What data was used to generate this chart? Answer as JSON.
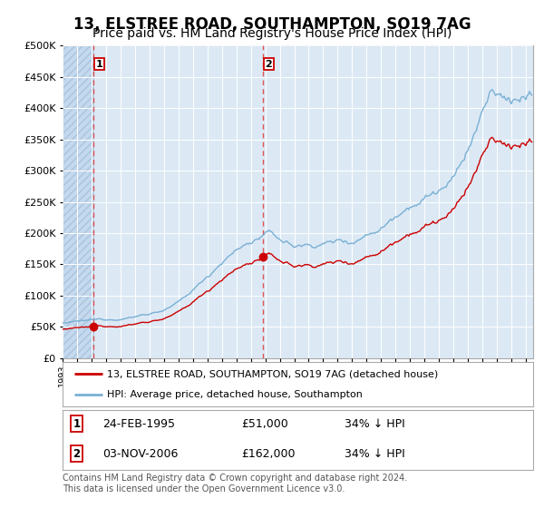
{
  "title": "13, ELSTREE ROAD, SOUTHAMPTON, SO19 7AG",
  "subtitle": "Price paid vs. HM Land Registry's House Price Index (HPI)",
  "title_fontsize": 12,
  "subtitle_fontsize": 10,
  "bg_color": "#dce9f5",
  "grid_color": "#ffffff",
  "red_line_color": "#cc0000",
  "blue_line_color": "#7ab0d4",
  "sale1_date": 1995.15,
  "sale1_price": 51000,
  "sale2_date": 2006.84,
  "sale2_price": 162000,
  "legend_label_red": "13, ELSTREE ROAD, SOUTHAMPTON, SO19 7AG (detached house)",
  "legend_label_blue": "HPI: Average price, detached house, Southampton",
  "footnote": "Contains HM Land Registry data © Crown copyright and database right 2024.\nThis data is licensed under the Open Government Licence v3.0.",
  "ylim": [
    0,
    500000
  ],
  "xlim_start": 1993.0,
  "xlim_end": 2025.5
}
